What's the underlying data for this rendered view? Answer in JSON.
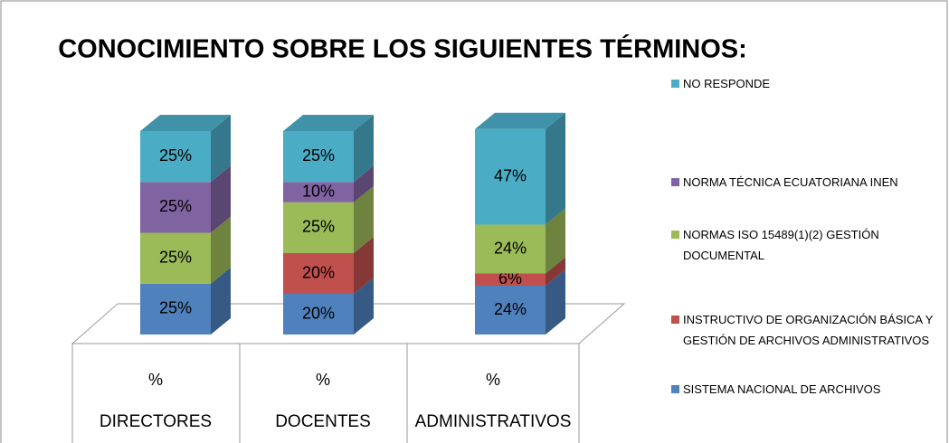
{
  "chart_data": {
    "type": "bar3d-stacked",
    "title": "CONOCIMIENTO SOBRE LOS SIGUIENTES TÉRMINOS:",
    "categories": [
      "DIRECTORES",
      "DOCENTES",
      "ADMINISTRATIVOS"
    ],
    "category_units": [
      "%",
      "%",
      "%"
    ],
    "series": [
      {
        "name": "SISTEMA NACIONAL DE ARCHIVOS",
        "color": "#4f81bd",
        "values": [
          25,
          20,
          24
        ],
        "value_labels": [
          "25%",
          "20%",
          "24%"
        ]
      },
      {
        "name": "INSTRUCTIVO DE ORGANIZACIÓN BÁSICA Y GESTIÓN DE ARCHIVOS ADMINISTRATIVOS",
        "color": "#c0504d",
        "values": [
          0,
          20,
          6
        ],
        "value_labels": [
          null,
          "20%",
          "6%"
        ]
      },
      {
        "name": "NORMAS ISO 15489(1)(2) GESTIÓN DOCUMENTAL",
        "color": "#9bbb59",
        "values": [
          25,
          25,
          24
        ],
        "value_labels": [
          "25%",
          "25%",
          "24%"
        ]
      },
      {
        "name": "NORMA TÉCNICA ECUATORIANA INEN",
        "color": "#8064a2",
        "values": [
          25,
          10,
          0
        ],
        "value_labels": [
          "25%",
          "10%",
          null
        ]
      },
      {
        "name": "NO RESPONDE",
        "color": "#4bacc6",
        "values": [
          25,
          25,
          47
        ],
        "value_labels": [
          "25%",
          "25%",
          "47%"
        ]
      }
    ],
    "legend": "right"
  }
}
